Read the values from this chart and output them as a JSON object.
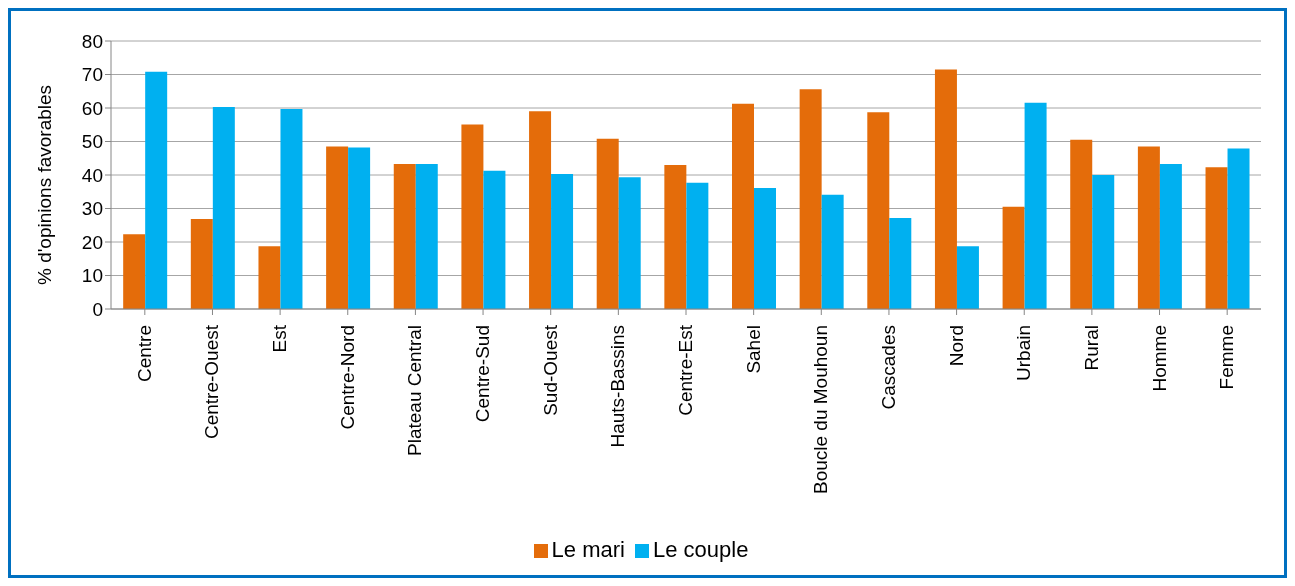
{
  "chart_data": {
    "type": "bar",
    "ylabel": "% d'opinions favorables",
    "categories": [
      "Centre",
      "Centre-Ouest",
      "Est",
      "Centre-Nord",
      "Plateau Central",
      "Centre-Sud",
      "Sud-Ouest",
      "Hauts-Bassins",
      "Centre-Est",
      "Sahel",
      "Boucle du Mouhoun",
      "Cascades",
      "Nord",
      "Urbain",
      "Rural",
      "Homme",
      "Femme"
    ],
    "series": [
      {
        "name": "Le mari",
        "color": "#e46c0a",
        "values": [
          22.3,
          26.9,
          18.7,
          48.5,
          43.3,
          55.1,
          59,
          50.8,
          43,
          61.3,
          65.6,
          58.7,
          71.5,
          30.5,
          50.5,
          48.5,
          42.3
        ]
      },
      {
        "name": "Le couple",
        "color": "#00b0f0",
        "values": [
          70.8,
          60.3,
          59.7,
          48.2,
          43.3,
          41.3,
          40.3,
          39.3,
          37.7,
          36.1,
          34.1,
          27.2,
          18.7,
          61.6,
          40,
          43.3,
          47.9
        ]
      }
    ],
    "ylim": [
      0,
      80
    ],
    "yticks": [
      0,
      10,
      20,
      30,
      40,
      50,
      60,
      70,
      80
    ],
    "grid": "y",
    "legend": "bottom"
  }
}
